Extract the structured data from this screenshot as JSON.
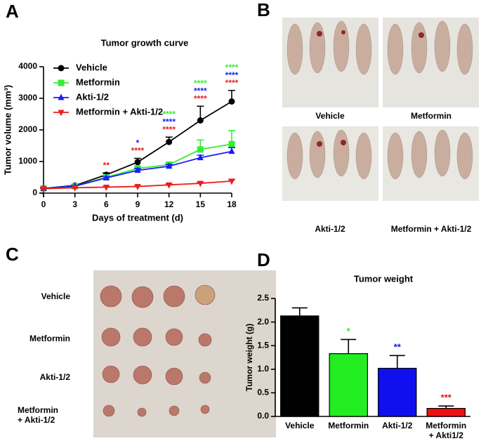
{
  "panel_labels": [
    "A",
    "B",
    "C",
    "D"
  ],
  "photo_b": {
    "labels": [
      "Vehicle",
      "Metformin",
      "Akti-1/2",
      "Metformin + Akti-1/2"
    ]
  },
  "photo_c": {
    "labels": [
      "Vehicle",
      "Metformin",
      "Akti-1/2",
      "Metformin + Akti-1/2"
    ]
  },
  "chart_data": [
    {
      "type": "line",
      "title": "Tumor growth curve",
      "x_label": "Days of treatment  (d)",
      "y_label": "Tumor volume (mm³)",
      "x": [
        0,
        3,
        6,
        9,
        12,
        15,
        18
      ],
      "xlim": [
        0,
        18
      ],
      "xticks": [
        0,
        3,
        6,
        9,
        12,
        15,
        18
      ],
      "ylim": [
        0,
        4000
      ],
      "yticks": [
        0,
        1000,
        2000,
        3000,
        4000
      ],
      "legend": "upper left",
      "series": [
        {
          "name": "Vehicle",
          "color": "#000000",
          "marker": "circle",
          "values": [
            150,
            240,
            580,
            980,
            1620,
            2300,
            2900
          ],
          "errors": [
            20,
            30,
            60,
            120,
            150,
            450,
            350
          ],
          "significance": [
            null,
            null,
            null,
            null,
            null,
            null,
            null
          ]
        },
        {
          "name": "Metformin",
          "color": "#33ee33",
          "marker": "square",
          "values": [
            150,
            220,
            500,
            780,
            900,
            1380,
            1550
          ],
          "errors": [
            20,
            30,
            50,
            70,
            80,
            300,
            430
          ],
          "significance": [
            null,
            null,
            null,
            null,
            "****",
            "****",
            "****"
          ]
        },
        {
          "name": "Akti-1/2",
          "color": "#1a1aff",
          "marker": "triangle-up",
          "values": [
            150,
            220,
            480,
            720,
            850,
            1120,
            1320
          ],
          "errors": [
            20,
            20,
            40,
            60,
            60,
            80,
            120
          ],
          "significance": [
            null,
            null,
            null,
            "*",
            "****",
            "****",
            "****"
          ]
        },
        {
          "name": "Metformin + Akti-1/2",
          "color": "#ee1c1c",
          "marker": "triangle-down",
          "values": [
            140,
            170,
            190,
            210,
            260,
            310,
            380
          ],
          "errors": [
            10,
            10,
            20,
            20,
            30,
            30,
            50
          ],
          "significance": [
            null,
            null,
            "**",
            "****",
            "****",
            "****",
            "****"
          ]
        }
      ]
    },
    {
      "type": "bar",
      "title": "Tumor weight",
      "y_label": "Tumor weight (g)",
      "categories": [
        "Vehicle",
        "Metformin",
        "Akti-1/2",
        "Metformin + Akti1/2"
      ],
      "values": [
        2.13,
        1.33,
        1.02,
        0.17
      ],
      "errors": [
        0.17,
        0.3,
        0.27,
        0.05
      ],
      "colors": [
        "#000000",
        "#22ee22",
        "#1010ee",
        "#ee1111"
      ],
      "significance": [
        null,
        "*",
        "**",
        "***"
      ],
      "ylim": [
        0,
        2.5
      ],
      "yticks": [
        {
          "value": 0,
          "label": "0.0"
        },
        0.5,
        {
          "value": 1,
          "label": "1.0"
        },
        1.5,
        {
          "value": 2,
          "label": "2.0"
        },
        2.5
      ]
    }
  ]
}
